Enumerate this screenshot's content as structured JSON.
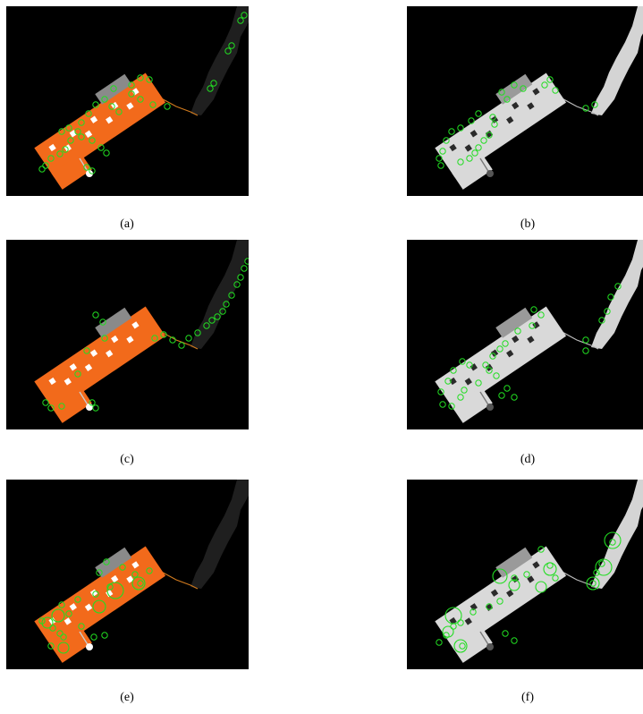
{
  "figure": {
    "panels": [
      {
        "id": "a",
        "caption": "(a)",
        "render": "color"
      },
      {
        "id": "b",
        "caption": "(b)",
        "render": "gray"
      },
      {
        "id": "c",
        "caption": "(c)",
        "render": "color"
      },
      {
        "id": "d",
        "caption": "(d)",
        "render": "gray"
      },
      {
        "id": "e",
        "caption": "(e)",
        "render": "color"
      },
      {
        "id": "f",
        "caption": "(f)",
        "render": "gray"
      }
    ],
    "colors": {
      "background": "#000000",
      "body_color": "#f26a1b",
      "body_gray": "#d9d9d9",
      "river_color": "#1f1f1f",
      "river_gray": "#d4d4d4",
      "keypoint": "#22dd22",
      "window_color": "#ffffff",
      "window_gray": "#2a2a2a"
    }
  }
}
